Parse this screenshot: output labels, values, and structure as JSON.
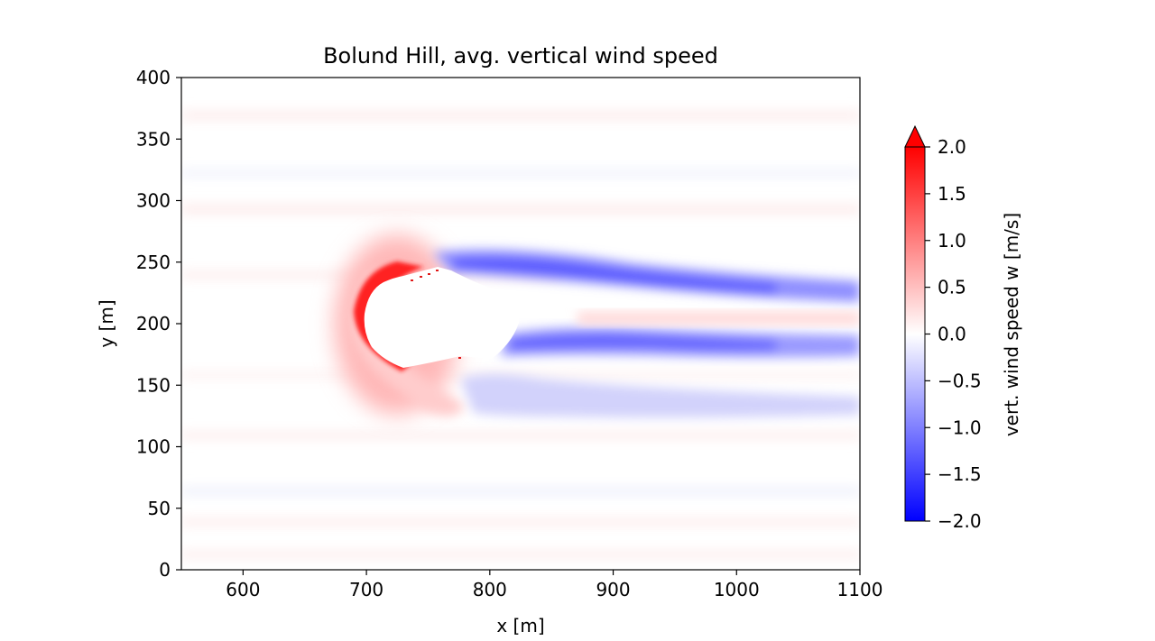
{
  "chart_data": {
    "type": "heatmap",
    "title": "Bolund Hill, avg. vertical wind speed",
    "xlabel": "x [m]",
    "ylabel": "y [m]",
    "xlim": [
      550,
      1100
    ],
    "ylim": [
      0,
      400
    ],
    "xticks": [
      600,
      700,
      800,
      900,
      1000,
      1100
    ],
    "yticks": [
      0,
      50,
      100,
      150,
      200,
      250,
      300,
      350,
      400
    ],
    "colorbar": {
      "label": "vert. wind speed w [m/s]",
      "range": [
        -2.0,
        2.0
      ],
      "ticks": [
        "−2.0",
        "−1.5",
        "−1.0",
        "−0.5",
        "0.0",
        "0.5",
        "1.0",
        "1.5",
        "2.0"
      ],
      "colormap": "bwr",
      "extend": "max",
      "colors": {
        "negative": "#0000ff",
        "zero": "#ffffff",
        "positive": "#ff0000"
      }
    },
    "features": [
      {
        "name": "hill (masked, no data)",
        "x": [
          702,
          822
        ],
        "y": [
          162,
          248
        ]
      },
      {
        "name": "strong updraft on windward slope",
        "x": [
          688,
          735
        ],
        "y": [
          158,
          250
        ],
        "w": 2.0
      },
      {
        "name": "downdraft band north of hill",
        "x": [
          760,
          1100
        ],
        "y": [
          225,
          255
        ],
        "w": -0.9
      },
      {
        "name": "downdraft band south of hill",
        "x": [
          790,
          1100
        ],
        "y": [
          175,
          205
        ],
        "w": -0.8
      },
      {
        "name": "weak downdraft wake",
        "x": [
          785,
          1000
        ],
        "y": [
          115,
          150
        ],
        "w": -0.35
      },
      {
        "name": "weak updraft streak downstream",
        "x": [
          840,
          1100
        ],
        "y": [
          200,
          215
        ],
        "w": 0.25
      }
    ],
    "grid": false
  }
}
